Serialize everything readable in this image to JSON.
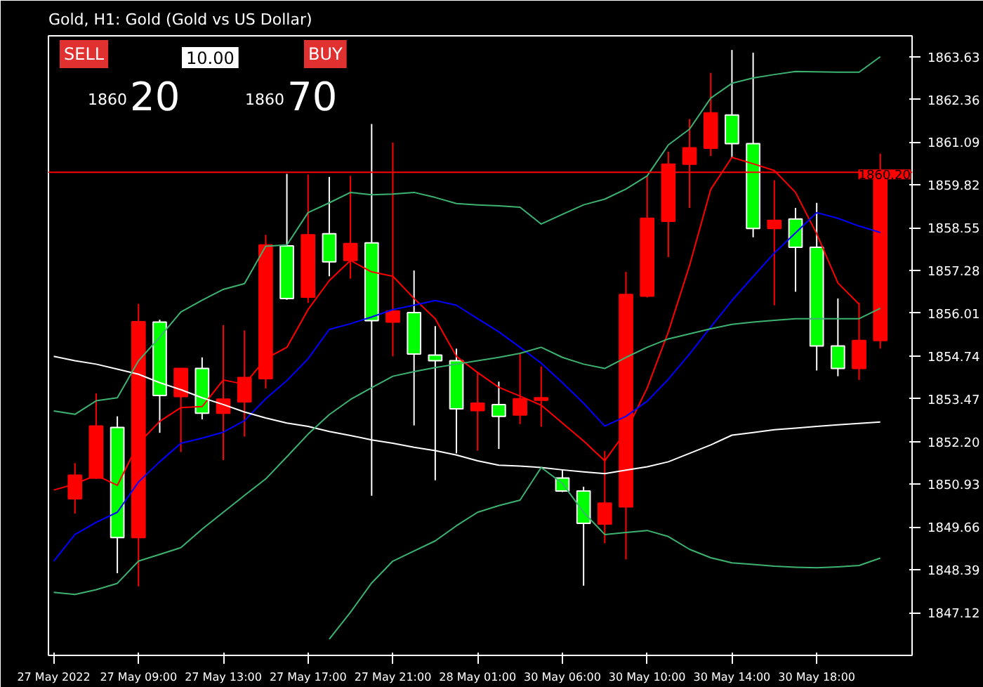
{
  "chart_data": {
    "type": "candlestick",
    "title": "Gold, H1:  Gold (Gold vs US Dollar)",
    "annotations": [
      "SELL",
      "10.00",
      "BUY",
      "1860",
      "20",
      "1860",
      "70"
    ],
    "categories": [
      "27 May 2022",
      null,
      null,
      null,
      "27 May 09:00",
      null,
      null,
      null,
      "27 May 13:00",
      null,
      null,
      null,
      "27 May 17:00",
      null,
      null,
      null,
      "27 May 21:00",
      null,
      null,
      null,
      "28 May 01:00",
      null,
      null,
      null,
      "30 May 06:00",
      null,
      null,
      null,
      "30 May 10:00",
      null,
      null,
      null,
      "30 May 14:00",
      null,
      null,
      null,
      "30 May 18:00",
      null,
      null,
      null
    ],
    "ohlc": [
      null,
      [
        1850.5,
        1851.56,
        1850.06,
        1851.2
      ],
      [
        1851.12,
        1853.63,
        1851.09,
        1852.66
      ],
      [
        1852.62,
        1852.95,
        1848.29,
        1849.35
      ],
      [
        1849.35,
        1856.29,
        1847.9,
        1855.76
      ],
      [
        1855.75,
        1855.82,
        1852.46,
        1853.57
      ],
      [
        1853.54,
        1854.37,
        1851.89,
        1854.37
      ],
      [
        1854.37,
        1854.7,
        1852.86,
        1853.04
      ],
      [
        1853.04,
        1855.66,
        1851.65,
        1853.46
      ],
      [
        1853.38,
        1855.5,
        1852.35,
        1854.1
      ],
      [
        1854.07,
        1858.34,
        1853.78,
        1858.04
      ],
      [
        1858.01,
        1860.15,
        1856.41,
        1856.45
      ],
      [
        1856.49,
        1860.13,
        1856.32,
        1858.34
      ],
      [
        1858.37,
        1860.06,
        1857.11,
        1857.54
      ],
      [
        1857.58,
        1860.09,
        1857.04,
        1858.08
      ],
      [
        1858.1,
        1861.63,
        1850.59,
        1855.79
      ],
      [
        1855.75,
        1861.08,
        1854.73,
        1856.08
      ],
      [
        1856.03,
        1857.28,
        1852.68,
        1854.8
      ],
      [
        1854.77,
        1855.63,
        1851.05,
        1854.6
      ],
      [
        1854.6,
        1854.96,
        1851.85,
        1853.17
      ],
      [
        1853.12,
        1854.27,
        1851.93,
        1853.34
      ],
      [
        1853.3,
        1853.98,
        1851.98,
        1852.95
      ],
      [
        1852.99,
        1854.82,
        1852.72,
        1853.47
      ],
      [
        1853.43,
        1854.43,
        1852.64,
        1853.5
      ],
      [
        1851.12,
        1851.36,
        1850.7,
        1850.73
      ],
      [
        1850.73,
        1850.86,
        1847.92,
        1849.77
      ],
      [
        1849.75,
        1851.92,
        1849.18,
        1850.37
      ],
      [
        1850.26,
        1857.24,
        1848.7,
        1856.57
      ],
      [
        1856.52,
        1860.09,
        1856.48,
        1858.83
      ],
      [
        1858.74,
        1860.81,
        1857.68,
        1860.44
      ],
      [
        1860.44,
        1861.78,
        1859.14,
        1860.92
      ],
      [
        1860.91,
        1863.15,
        1860.68,
        1861.96
      ],
      [
        1861.9,
        1863.83,
        1860.62,
        1861.05
      ],
      [
        1861.05,
        1863.75,
        1858.27,
        1858.53
      ],
      [
        1858.53,
        1859.96,
        1856.25,
        1858.77
      ],
      [
        1858.81,
        1859.14,
        1856.65,
        1857.97
      ],
      [
        1857.97,
        1859.29,
        1854.31,
        1855.04
      ],
      [
        1855.04,
        1856.45,
        1854.14,
        1854.37
      ],
      [
        1854.37,
        1856.32,
        1854.03,
        1855.2
      ],
      [
        1855.2,
        1860.75,
        1854.96,
        1860.2
      ]
    ],
    "colors": [
      null,
      "#ff0000",
      "#ff0000",
      "#00ff00",
      "#ff0000",
      "#00ff00",
      "#ff0000",
      "#00ff00",
      "#ff0000",
      "#ff0000",
      "#ff0000",
      "#00ff00",
      "#ff0000",
      "#00ff00",
      "#ff0000",
      "#00ff00",
      "#ff0000",
      "#00ff00",
      "#00ff00",
      "#00ff00",
      "#ff0000",
      "#00ff00",
      "#ff0000",
      "#ff0000",
      "#00ff00",
      "#00ff00",
      "#ff0000",
      "#ff0000",
      "#ff0000",
      "#ff0000",
      "#ff0000",
      "#ff0000",
      "#00ff00",
      "#00ff00",
      "#ff0000",
      "#00ff00",
      "#00ff00",
      "#00ff00",
      "#ff0000",
      "#ff0000"
    ],
    "series": [
      {
        "type": "line",
        "color": "#ff0000",
        "values": [
          1850.76,
          1850.94,
          1851.2,
          1850.9,
          1852.15,
          1852.8,
          1853.21,
          1853.24,
          1854.03,
          1853.9,
          1854.66,
          1855.0,
          1856.12,
          1856.98,
          1857.58,
          1857.24,
          1857.11,
          1856.45,
          1855.85,
          1854.73,
          1854.25,
          1853.81,
          1853.55,
          1853.28,
          1852.75,
          1852.22,
          1851.63,
          1852.5,
          1853.79,
          1855.46,
          1857.43,
          1859.69,
          1860.64,
          1860.45,
          1860.25,
          1859.6,
          1858.37,
          1856.91,
          1856.28,
          null
        ]
      },
      {
        "type": "line",
        "color": "#0000ff",
        "values": [
          1848.65,
          1849.44,
          1849.8,
          1850.1,
          1851.0,
          1851.6,
          1852.15,
          1852.3,
          1852.48,
          1852.82,
          1853.47,
          1854.01,
          1854.66,
          1855.53,
          1855.7,
          1855.9,
          1856.12,
          1856.25,
          1856.39,
          1856.25,
          1855.85,
          1855.46,
          1855.0,
          1854.53,
          1853.95,
          1853.34,
          1852.66,
          1852.95,
          1853.4,
          1854.05,
          1854.8,
          1855.6,
          1856.39,
          1857.1,
          1857.8,
          1858.4,
          1859.0,
          1858.83,
          1858.6,
          1858.41
        ]
      },
      {
        "type": "line",
        "color": "#ffffff",
        "values": [
          1854.73,
          1854.6,
          1854.5,
          1854.35,
          1854.2,
          1853.95,
          1853.74,
          1853.5,
          1853.3,
          1853.08,
          1852.9,
          1852.75,
          1852.65,
          1852.5,
          1852.38,
          1852.25,
          1852.15,
          1852.03,
          1851.93,
          1851.8,
          1851.63,
          1851.5,
          1851.47,
          1851.43,
          1851.36,
          1851.3,
          1851.25,
          1851.35,
          1851.45,
          1851.6,
          1851.85,
          1852.1,
          1852.39,
          1852.47,
          1852.55,
          1852.6,
          1852.65,
          1852.7,
          1852.74,
          1852.78
        ]
      },
      {
        "type": "line",
        "color": "#3cb371",
        "values": [
          1853.11,
          1853.01,
          1853.41,
          1853.5,
          1854.6,
          1855.3,
          1856.05,
          1856.4,
          1856.72,
          1856.89,
          1858.0,
          1858.04,
          1859.0,
          1859.29,
          1859.6,
          1859.53,
          1859.55,
          1859.6,
          1859.45,
          1859.27,
          1859.23,
          1859.2,
          1859.16,
          1858.66,
          1858.95,
          1859.23,
          1859.4,
          1859.7,
          1860.09,
          1861.01,
          1861.48,
          1862.4,
          1862.84,
          1863.0,
          1863.1,
          1863.19,
          1863.18,
          1863.17,
          1863.17,
          1863.63
        ]
      },
      {
        "type": "line",
        "color": "#3cb371",
        "values": [
          1847.72,
          1847.66,
          1847.8,
          1847.99,
          1848.65,
          1848.85,
          1849.05,
          1849.6,
          1850.1,
          1850.6,
          1851.09,
          1851.75,
          1852.42,
          1853.0,
          1853.45,
          1853.8,
          1854.14,
          1854.28,
          1854.4,
          1854.5,
          1854.6,
          1854.7,
          1854.82,
          1855.0,
          1854.7,
          1854.5,
          1854.37,
          1854.7,
          1855.0,
          1855.25,
          1855.4,
          1855.55,
          1855.68,
          1855.75,
          1855.8,
          1855.85,
          1855.85,
          1855.85,
          1855.85,
          1856.16
        ]
      },
      {
        "type": "line",
        "color": "#3cb371",
        "values": [
          null,
          null,
          null,
          null,
          null,
          null,
          null,
          null,
          null,
          null,
          null,
          null,
          null,
          1846.33,
          1847.13,
          1848.0,
          1848.65,
          1848.95,
          1849.25,
          1849.7,
          1850.1,
          1850.3,
          1850.46,
          1851.43,
          1850.96,
          1850.1,
          1849.44,
          1849.5,
          1849.56,
          1849.38,
          1849.0,
          1848.75,
          1848.6,
          1848.55,
          1848.5,
          1848.47,
          1848.45,
          1848.48,
          1848.52,
          1848.74
        ]
      }
    ],
    "ref_lines": [
      {
        "axis": "y",
        "value": 1860.2,
        "label": "1860.20",
        "color": "#ff0000"
      }
    ],
    "ylim": [
      1845.85,
      1864.25
    ],
    "yticks": [
      1863.63,
      1862.36,
      1861.09,
      1859.82,
      1858.55,
      1857.28,
      1856.01,
      1854.74,
      1853.47,
      {
        "value": 1852.2,
        "label": "1852.20"
      },
      1850.93,
      1849.66,
      1848.39,
      1847.12
    ],
    "grid": false
  }
}
